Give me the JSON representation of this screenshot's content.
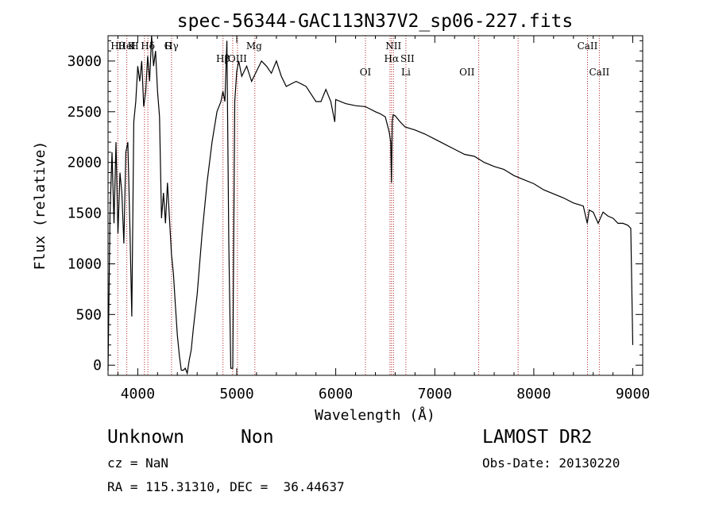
{
  "chart_data": {
    "type": "line",
    "title": "spec-56344-GAC113N37V2_sp06-227.fits",
    "xlabel": "Wavelength (Å)",
    "ylabel": "Flux (relative)",
    "xlim": [
      3700,
      9100
    ],
    "ylim": [
      -100,
      3250
    ],
    "x_ticks": [
      4000,
      5000,
      6000,
      7000,
      8000,
      9000
    ],
    "y_ticks": [
      0,
      500,
      1000,
      1500,
      2000,
      2500,
      3000
    ],
    "grid": false,
    "series": [
      {
        "x": [
          3700,
          3720,
          3740,
          3760,
          3780,
          3800,
          3820,
          3840,
          3860,
          3880,
          3900,
          3920,
          3940,
          3960,
          3980,
          4000,
          4020,
          4040,
          4060,
          4080,
          4100,
          4120,
          4140,
          4160,
          4180,
          4200,
          4220,
          4240,
          4260,
          4280,
          4300,
          4320,
          4340,
          4360,
          4380,
          4400,
          4420,
          4440,
          4460,
          4480,
          4500,
          4520,
          4540,
          4560,
          4600,
          4650,
          4700,
          4750,
          4800,
          4840,
          4860,
          4880,
          4900,
          4920,
          4940,
          4960,
          4980,
          5000,
          5020,
          5050,
          5100,
          5150,
          5200,
          5250,
          5300,
          5350,
          5400,
          5450,
          5500,
          5600,
          5700,
          5800,
          5850,
          5900,
          5950,
          5990,
          6000,
          6100,
          6200,
          6300,
          6400,
          6450,
          6500,
          6540,
          6555,
          6563,
          6570,
          6580,
          6600,
          6650,
          6700,
          6800,
          6900,
          7000,
          7100,
          7200,
          7300,
          7400,
          7500,
          7600,
          7700,
          7800,
          7900,
          8000,
          8100,
          8200,
          8300,
          8400,
          8500,
          8540,
          8560,
          8600,
          8650,
          8700,
          8750,
          8800,
          8850,
          8900,
          8950,
          8980,
          9000
        ],
        "values": [
          -50,
          1500,
          2100,
          1400,
          2200,
          1300,
          1900,
          1700,
          1200,
          2100,
          2200,
          1400,
          480,
          2400,
          2600,
          2950,
          2800,
          3000,
          2550,
          2700,
          3050,
          2800,
          3250,
          2950,
          3100,
          2700,
          2450,
          1450,
          1700,
          1400,
          1800,
          1450,
          1100,
          900,
          600,
          300,
          100,
          -50,
          -50,
          -30,
          -80,
          50,
          150,
          350,
          700,
          1300,
          1800,
          2200,
          2500,
          2600,
          2700,
          2600,
          3200,
          1200,
          -30,
          -30,
          2600,
          2900,
          3000,
          2850,
          2950,
          2800,
          2900,
          3000,
          2950,
          2880,
          3000,
          2850,
          2750,
          2800,
          2750,
          2600,
          2600,
          2720,
          2600,
          2400,
          2620,
          2580,
          2560,
          2550,
          2500,
          2480,
          2450,
          2300,
          2200,
          1800,
          2400,
          2470,
          2460,
          2400,
          2350,
          2320,
          2280,
          2230,
          2180,
          2130,
          2080,
          2060,
          2000,
          1960,
          1930,
          1870,
          1830,
          1790,
          1730,
          1690,
          1650,
          1600,
          1570,
          1400,
          1530,
          1510,
          1400,
          1510,
          1470,
          1450,
          1400,
          1400,
          1380,
          1350,
          200
        ]
      }
    ],
    "line_labels_top": [
      {
        "label": "HeI",
        "x": 3889
      },
      {
        "label": "Hθ",
        "x": 3797
      },
      {
        "label": "K",
        "x": 3934
      },
      {
        "label": "H",
        "x": 3969
      },
      {
        "label": "Hδ",
        "x": 4102
      },
      {
        "label": "G",
        "x": 4305
      },
      {
        "label": "Hγ",
        "x": 4341
      },
      {
        "label": "Mg",
        "x": 5175
      },
      {
        "label": "NII",
        "x": 6583
      },
      {
        "label": "CaII",
        "x": 8542
      }
    ],
    "line_labels_mid": [
      {
        "label": "OIII",
        "x": 5007
      },
      {
        "label": "Hβ",
        "x": 4861
      },
      {
        "label": "Hα",
        "x": 6563
      },
      {
        "label": "SII",
        "x": 6724
      }
    ],
    "line_labels_low": [
      {
        "label": "OI",
        "x": 6300
      },
      {
        "label": "Li",
        "x": 6708
      },
      {
        "label": "OII",
        "x": 7325
      },
      {
        "label": "CaII",
        "x": 8662
      }
    ],
    "line_marker_x": [
      3798,
      3889,
      4068,
      4102,
      4341,
      4861,
      4959,
      5007,
      5183,
      6300,
      6548,
      6563,
      6583,
      6708,
      7444,
      7842,
      8542,
      8662
    ]
  },
  "info": {
    "object_class": "Unknown",
    "subclass": "Non",
    "redshift": "cz = NaN",
    "coords": "RA = 115.31310, DEC =  36.44637",
    "survey": "LAMOST DR2",
    "obs_date": "Obs-Date: 20130220"
  },
  "colors": {
    "spectrum": "#000000",
    "line_marker": "#b22222",
    "text": "#000000"
  }
}
